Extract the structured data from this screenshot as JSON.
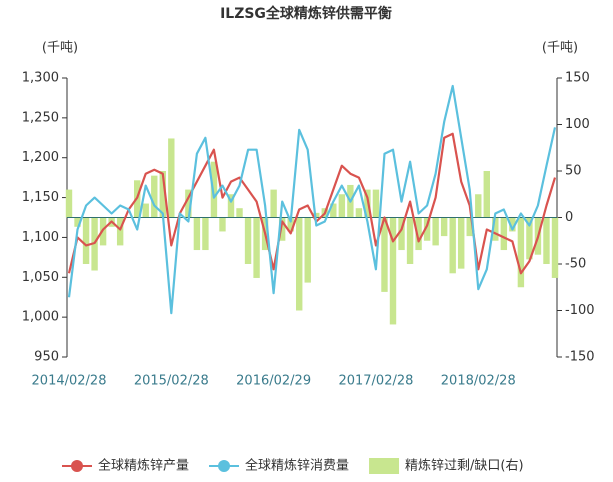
{
  "chart_data": {
    "type": "bar-line",
    "title": "ILZSG全球精炼锌供需平衡",
    "y_label": "(千吨)",
    "y2_label": "(千吨)",
    "categories": [
      "2014/02/28",
      null,
      null,
      null,
      null,
      null,
      null,
      null,
      null,
      null,
      null,
      null,
      "2015/02/28",
      null,
      null,
      null,
      null,
      null,
      null,
      null,
      null,
      null,
      null,
      null,
      "2016/02/29",
      null,
      null,
      null,
      null,
      null,
      null,
      null,
      null,
      null,
      null,
      null,
      "2017/02/28",
      null,
      null,
      null,
      null,
      null,
      null,
      null,
      null,
      null,
      null,
      null,
      "2018/02/28",
      null,
      null,
      null,
      null,
      null,
      null,
      null,
      null,
      null
    ],
    "series": [
      {
        "name": "全球精炼锌产量",
        "type": "line",
        "color": "#d9534f",
        "values": [
          1055,
          1100,
          1090,
          1093,
          1110,
          1120,
          1110,
          1135,
          1150,
          1180,
          1185,
          1180,
          1090,
          1130,
          1150,
          1170,
          1190,
          1210,
          1150,
          1170,
          1175,
          1160,
          1145,
          1105,
          1060,
          1120,
          1105,
          1135,
          1140,
          1120,
          1130,
          1160,
          1190,
          1180,
          1175,
          1150,
          1090,
          1125,
          1095,
          1110,
          1145,
          1095,
          1115,
          1150,
          1225,
          1230,
          1170,
          1140,
          1060,
          1110,
          1105,
          1100,
          1095,
          1055,
          1070,
          1100,
          1140,
          1175
        ]
      },
      {
        "name": "全球精炼锌消费量",
        "type": "line",
        "color": "#5bc0de",
        "values": [
          1025,
          1110,
          1140,
          1150,
          1140,
          1130,
          1140,
          1135,
          1110,
          1165,
          1140,
          1130,
          1005,
          1130,
          1120,
          1205,
          1225,
          1150,
          1165,
          1145,
          1165,
          1210,
          1210,
          1140,
          1030,
          1145,
          1120,
          1235,
          1210,
          1115,
          1120,
          1145,
          1165,
          1145,
          1165,
          1120,
          1060,
          1205,
          1210,
          1145,
          1195,
          1130,
          1140,
          1180,
          1245,
          1290,
          1225,
          1160,
          1035,
          1060,
          1130,
          1135,
          1110,
          1130,
          1115,
          1140,
          1190,
          1238
        ]
      },
      {
        "name": "精炼锌过剩/缺口(右)",
        "type": "bar",
        "axis": "y2",
        "color": "#c8e68f",
        "values": [
          30,
          -10,
          -50,
          -57,
          -30,
          -10,
          -30,
          0,
          40,
          15,
          45,
          50,
          85,
          0,
          30,
          -35,
          -35,
          60,
          -15,
          25,
          10,
          -50,
          -65,
          -35,
          30,
          -25,
          -15,
          -100,
          -70,
          5,
          10,
          15,
          25,
          35,
          10,
          30,
          30,
          -80,
          -115,
          -35,
          -50,
          -35,
          -25,
          -30,
          -20,
          -60,
          -55,
          -20,
          25,
          50,
          -25,
          -35,
          -15,
          -75,
          -45,
          -40,
          -50,
          -65
        ]
      }
    ],
    "ylim": [
      950,
      1300
    ],
    "yticks": [
      950,
      {
        "value": 1000,
        "label": "1,000"
      },
      {
        "value": 1050,
        "label": "1,050"
      },
      {
        "value": 1100,
        "label": "1,100"
      },
      {
        "value": 1150,
        "label": "1,150"
      },
      {
        "value": 1200,
        "label": "1,200"
      },
      {
        "value": 1250,
        "label": "1,250"
      },
      {
        "value": 1300,
        "label": "1,300"
      }
    ],
    "y2lim": [
      -150,
      150
    ],
    "y2ticks": [
      -150,
      -100,
      -50,
      0,
      50,
      100,
      150
    ],
    "legend": "bottom"
  }
}
